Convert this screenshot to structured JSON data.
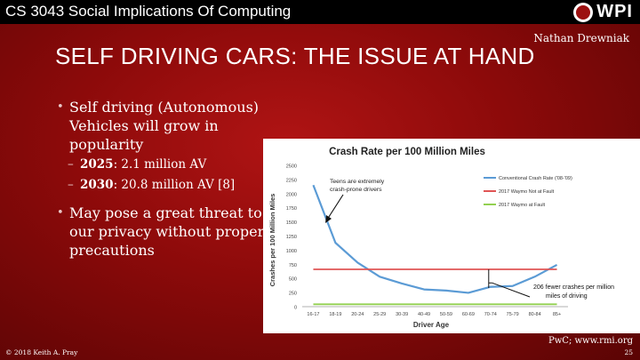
{
  "header": {
    "course": "CS 3043 Social Implications Of Computing",
    "logo_text": "WPI",
    "author": "Nathan Drewniak"
  },
  "slide": {
    "title": "SELF DRIVING CARS: THE ISSUE AT HAND",
    "bullet1": "Self driving (Autonomous) Vehicles will grow in popularity",
    "sub1_year": "2025",
    "sub1_text": ": 2.1 million AV",
    "sub2_year": "2030",
    "sub2_text": ": 20.8 million AV [8]",
    "bullet2": "May pose a great threat to our privacy without proper precautions",
    "source": "PwC; www.rmi.org"
  },
  "footer": {
    "copyright": "© 2018 Keith A. Pray",
    "page": "25"
  },
  "colors": {
    "conventional": "#5b9bd5",
    "waymo_not_fault": "#e05555",
    "waymo_fault": "#92d050"
  },
  "chart_data": {
    "type": "line",
    "title": "Crash Rate per 100 Million Miles",
    "xlabel": "Driver Age",
    "ylabel": "Crashes per 100 Million Miles",
    "categories": [
      "16-17",
      "18-19",
      "20-24",
      "25-29",
      "30-39",
      "40-49",
      "50-59",
      "60-69",
      "70-74",
      "75-79",
      "80-84",
      "85+"
    ],
    "ylim": [
      0,
      2500
    ],
    "yticks": [
      0,
      250,
      500,
      750,
      1000,
      1250,
      1500,
      1750,
      2000,
      2250,
      2500
    ],
    "series": [
      {
        "name": "Conventional Crash Rate ('08-'09)",
        "values": [
          2150,
          1130,
          780,
          530,
          410,
          305,
          285,
          245,
          350,
          365,
          530,
          740
        ]
      },
      {
        "name": "2017 Waymo Not at Fault",
        "values": [
          660,
          660,
          660,
          660,
          660,
          660,
          660,
          660,
          660,
          660,
          660,
          660
        ]
      },
      {
        "name": "2017 Waymo at Fault",
        "values": [
          42,
          42,
          42,
          42,
          42,
          42,
          42,
          42,
          42,
          42,
          42,
          42
        ]
      }
    ],
    "annotations": {
      "teens": "Teens are extremely crash-prone drivers",
      "fewer_line1": "206 fewer crashes per million",
      "fewer_line2": "miles of driving"
    }
  }
}
